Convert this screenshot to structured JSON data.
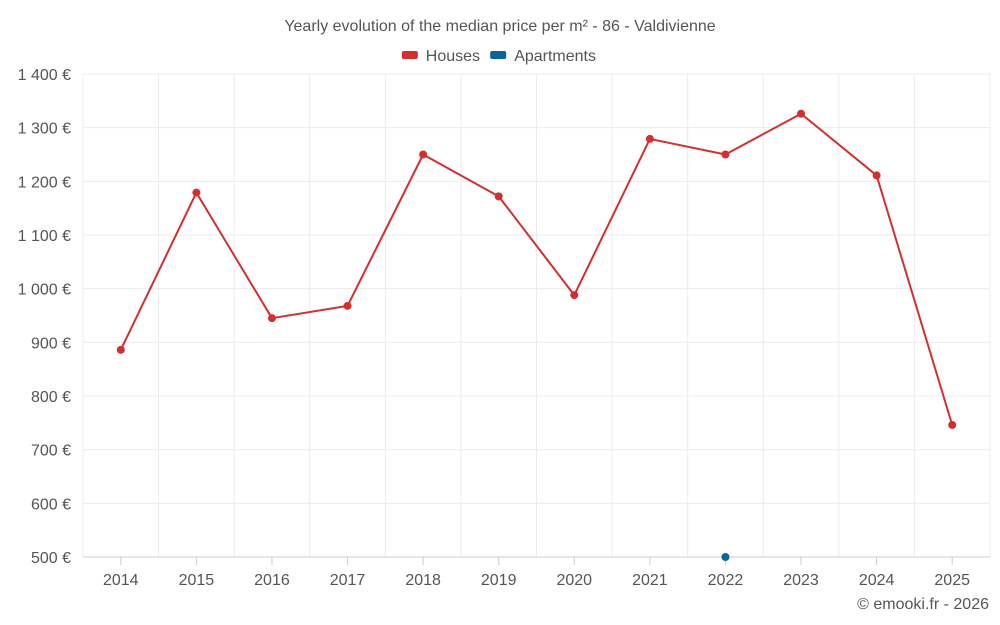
{
  "chart_data": {
    "type": "line",
    "title": "Yearly evolution of the median price per m² - 86 - Valdivienne",
    "categories": [
      "2014",
      "2015",
      "2016",
      "2017",
      "2018",
      "2019",
      "2020",
      "2021",
      "2022",
      "2023",
      "2024",
      "2025"
    ],
    "series": [
      {
        "name": "Houses",
        "color": "#d32f2f",
        "values": [
          886,
          1179,
          945,
          968,
          1250,
          1172,
          988,
          1279,
          1250,
          1326,
          1211,
          746
        ]
      },
      {
        "name": "Apartments",
        "color": "#0d6496",
        "values": [
          null,
          null,
          null,
          null,
          null,
          null,
          null,
          null,
          500,
          null,
          null,
          null
        ]
      }
    ],
    "ylim": [
      500,
      1400
    ],
    "yticks": [
      500,
      600,
      700,
      800,
      900,
      1000,
      1100,
      1200,
      1300,
      1400
    ],
    "ytick_labels": [
      "500 €",
      "600 €",
      "700 €",
      "800 €",
      "900 €",
      "1 000 €",
      "1 100 €",
      "1 200 €",
      "1 300 €",
      "1 400 €"
    ],
    "xlabel": "",
    "ylabel": "",
    "grid": true,
    "legend_position": "top-center"
  },
  "copyright": "© emooki.fr - 2026"
}
